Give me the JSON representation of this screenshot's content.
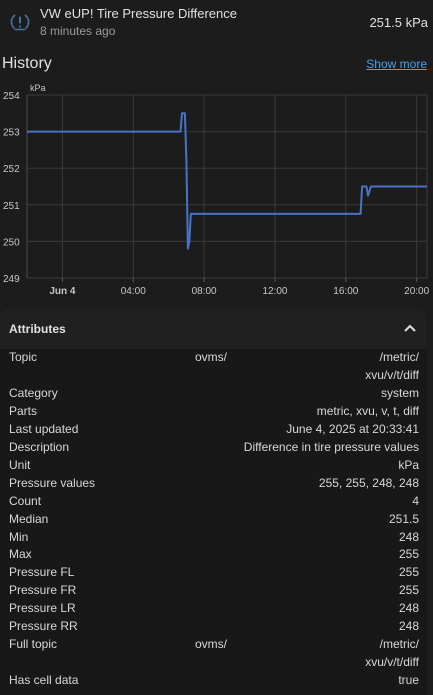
{
  "entity": {
    "icon": "tire-pressure-alert-icon",
    "name": "VW eUP! Tire Pressure Difference",
    "last_changed": "8 minutes ago",
    "state": "251.5 kPa"
  },
  "history": {
    "title": "History",
    "show_more": "Show more"
  },
  "colors": {
    "accent": "#3fa3f5",
    "series": "#4a72c8"
  },
  "chart_data": {
    "type": "line",
    "ylabel": "kPa",
    "ylim": [
      249,
      254
    ],
    "yticks": [
      249,
      250,
      251,
      252,
      253,
      254
    ],
    "xlim": [
      "2025-06-03T22:00",
      "2025-06-04T20:35"
    ],
    "xticks": [
      {
        "label": "Jun 4",
        "t": "2025-06-04T00:00",
        "bold": true
      },
      {
        "label": "04:00",
        "t": "2025-06-04T04:00"
      },
      {
        "label": "08:00",
        "t": "2025-06-04T08:00"
      },
      {
        "label": "12:00",
        "t": "2025-06-04T12:00"
      },
      {
        "label": "16:00",
        "t": "2025-06-04T16:00"
      },
      {
        "label": "20:00",
        "t": "2025-06-04T20:00"
      }
    ],
    "grid": true,
    "series": [
      {
        "points": [
          [
            "2025-06-03T22:00",
            253.0
          ],
          [
            "2025-06-04T06:40",
            253.0
          ],
          [
            "2025-06-04T06:45",
            253.5
          ],
          [
            "2025-06-04T06:55",
            253.5
          ],
          [
            "2025-06-04T07:00",
            252.2
          ],
          [
            "2025-06-04T07:05",
            249.8
          ],
          [
            "2025-06-04T07:10",
            250.0
          ],
          [
            "2025-06-04T07:15",
            250.75
          ],
          [
            "2025-06-04T16:50",
            250.75
          ],
          [
            "2025-06-04T16:55",
            251.5
          ],
          [
            "2025-06-04T17:10",
            251.5
          ],
          [
            "2025-06-04T17:15",
            251.25
          ],
          [
            "2025-06-04T17:25",
            251.5
          ],
          [
            "2025-06-04T20:35",
            251.5
          ]
        ]
      }
    ]
  },
  "attributes": {
    "title": "Attributes",
    "rows": [
      {
        "key": "Topic",
        "mid": "ovms/",
        "value": "/metric/"
      },
      {
        "key": "",
        "value": "xvu/v/t/diff"
      },
      {
        "key": "Category",
        "value": "system"
      },
      {
        "key": "Parts",
        "value": "metric, xvu, v, t, diff"
      },
      {
        "key": "Last updated",
        "value": "June 4, 2025 at 20:33:41"
      },
      {
        "key": "Description",
        "value": "Difference in tire pressure values"
      },
      {
        "key": "Unit",
        "value": "kPa"
      },
      {
        "key": "Pressure values",
        "value": "255, 255, 248, 248"
      },
      {
        "key": "Count",
        "value": "4"
      },
      {
        "key": "Median",
        "value": "251.5"
      },
      {
        "key": "Min",
        "value": "248"
      },
      {
        "key": "Max",
        "value": "255"
      },
      {
        "key": "Pressure FL",
        "value": "255"
      },
      {
        "key": "Pressure FR",
        "value": "255"
      },
      {
        "key": "Pressure LR",
        "value": "248"
      },
      {
        "key": "Pressure RR",
        "value": "248"
      },
      {
        "key": "Full topic",
        "mid": "ovms/",
        "value": "/metric/"
      },
      {
        "key": "",
        "value": "xvu/v/t/diff"
      },
      {
        "key": "Has cell data",
        "value": "true"
      }
    ]
  }
}
